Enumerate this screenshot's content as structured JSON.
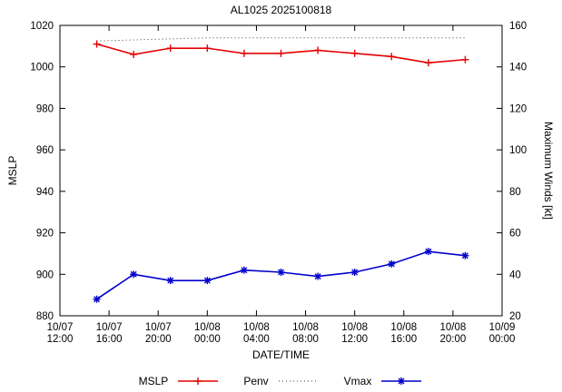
{
  "chart_data": {
    "type": "line",
    "title": "AL1025 2025100818",
    "xlabel": "DATE/TIME",
    "ylabel_left": "MSLP",
    "ylabel_right": "Maximum Winds [kt]",
    "x_range_hours": [
      0,
      36
    ],
    "ylim_left": [
      880,
      1020
    ],
    "ylim_right": [
      20,
      160
    ],
    "grid": false,
    "legend_position": "bottom-center",
    "x_ticks": [
      {
        "hours": 0,
        "date": "10/07",
        "time": "12:00"
      },
      {
        "hours": 4,
        "date": "10/07",
        "time": "16:00"
      },
      {
        "hours": 8,
        "date": "10/07",
        "time": "20:00"
      },
      {
        "hours": 12,
        "date": "10/08",
        "time": "00:00"
      },
      {
        "hours": 16,
        "date": "10/08",
        "time": "04:00"
      },
      {
        "hours": 20,
        "date": "10/08",
        "time": "08:00"
      },
      {
        "hours": 24,
        "date": "10/08",
        "time": "12:00"
      },
      {
        "hours": 28,
        "date": "10/08",
        "time": "16:00"
      },
      {
        "hours": 32,
        "date": "10/08",
        "time": "20:00"
      },
      {
        "hours": 36,
        "date": "10/09",
        "time": "00:00"
      }
    ],
    "y_ticks_left": [
      880,
      900,
      920,
      940,
      960,
      980,
      1000,
      1020
    ],
    "y_ticks_right": [
      20,
      40,
      60,
      80,
      100,
      120,
      140,
      160
    ],
    "series": [
      {
        "name": "MSLP",
        "axis": "left",
        "color": "#e60000",
        "line": "solid",
        "marker": "plus",
        "x_hours": [
          3,
          6,
          9,
          12,
          15,
          18,
          21,
          24,
          27,
          30,
          33
        ],
        "values": [
          1011,
          1006,
          1009,
          1009,
          1006.5,
          1006.5,
          1008,
          1006.5,
          1005,
          1002,
          1003.5
        ]
      },
      {
        "name": "Penv",
        "axis": "left",
        "color": "#404040",
        "line": "dotted",
        "marker": "none",
        "x_hours": [
          3,
          6,
          9,
          12,
          15,
          18,
          21,
          24,
          27,
          30,
          33
        ],
        "values": [
          1012.5,
          1013,
          1013.5,
          1014,
          1014,
          1014,
          1014,
          1014,
          1014,
          1014,
          1014
        ]
      },
      {
        "name": "Vmax",
        "axis": "right",
        "color": "#0000cc",
        "line": "solid",
        "marker": "asterisk",
        "x_hours": [
          3,
          6,
          9,
          12,
          15,
          18,
          21,
          24,
          27,
          30,
          33
        ],
        "values": [
          28,
          40,
          37,
          37,
          42,
          41,
          39,
          41,
          45,
          51,
          49
        ]
      }
    ]
  }
}
